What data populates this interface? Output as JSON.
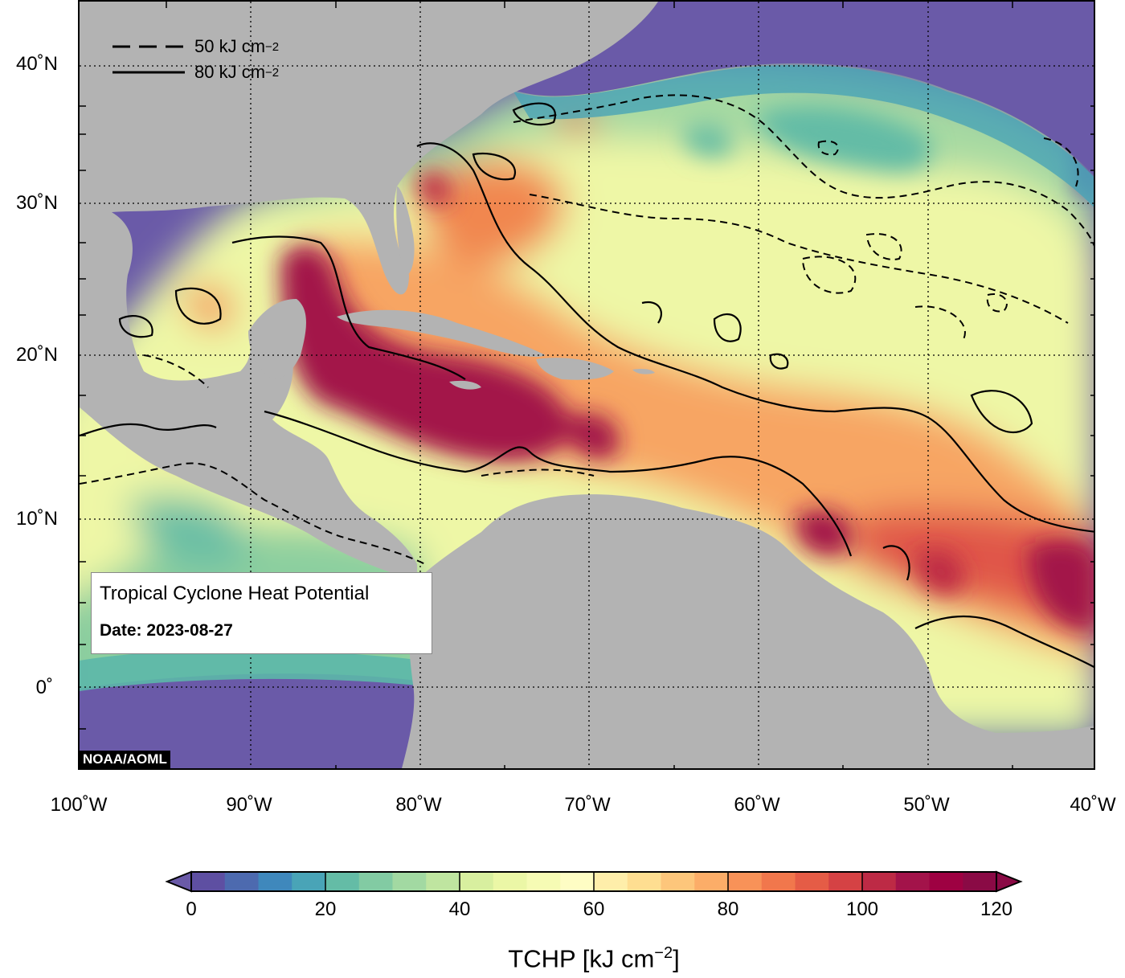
{
  "map": {
    "title": "Tropical Cyclone Heat Potential",
    "date_label": "Date: 2023-08-27",
    "credit": "NOAA/AOML",
    "lat_labels": [
      "40˚N",
      "30˚N",
      "20˚N",
      "10˚N",
      "0˚"
    ],
    "lon_labels": [
      "100˚W",
      "90˚W",
      "80˚W",
      "70˚W",
      "60˚W",
      "50˚W",
      "40˚W"
    ],
    "extent": {
      "lon_min": -100,
      "lon_max": -40,
      "lat_min": -5,
      "lat_max": 44
    },
    "contour_legend": [
      {
        "style": "dashed",
        "value": "50 kJ cm",
        "superscript": "−2"
      },
      {
        "style": "solid",
        "value": "80 kJ cm",
        "superscript": "−2"
      }
    ],
    "colors": {
      "land": "#b3b3b3",
      "low": "#6a5aa8",
      "high": "#a3134a"
    }
  },
  "colorbar": {
    "ticks": [
      "0",
      "20",
      "40",
      "60",
      "80",
      "100",
      "120"
    ],
    "range": [
      0,
      120
    ],
    "step": 5,
    "title": "TCHP [kJ cm",
    "title_sup": "−2",
    "title_end": "]",
    "colors": [
      "#5e4fa2",
      "#4d6aaf",
      "#3f88bc",
      "#49a4b7",
      "#64bca6",
      "#82cba3",
      "#a2d9a2",
      "#bfe5a0",
      "#d8ef9f",
      "#ebf7a6",
      "#f6fbb4",
      "#fefdc4",
      "#feeeaa",
      "#fede91",
      "#fdc67b",
      "#fcad68",
      "#f89258",
      "#f1774c",
      "#e55c46",
      "#d54244",
      "#bd2a45",
      "#a3134a",
      "#9e0142",
      "#8a0a45"
    ]
  }
}
